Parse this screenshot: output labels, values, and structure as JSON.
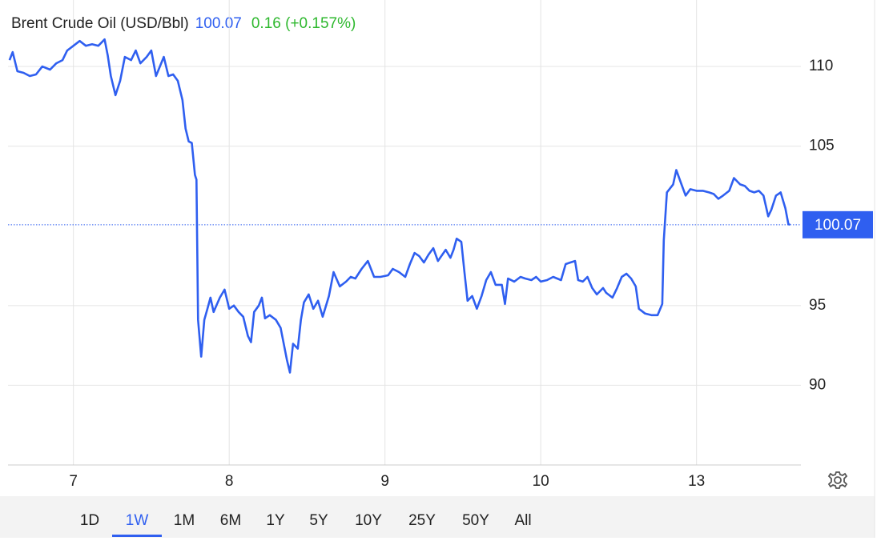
{
  "chart_data": {
    "type": "line",
    "title": "Brent Crude Oil (USD/Bbl)",
    "last_price": 100.07,
    "last_price_label": "100.07",
    "change": "0.16 (+0.157%)",
    "grid": true,
    "xlim": [
      -0.42,
      4.67
    ],
    "ylim": [
      85,
      114.17
    ],
    "xticks": [
      {
        "value": 0,
        "label": "7"
      },
      {
        "value": 1,
        "label": "8"
      },
      {
        "value": 2,
        "label": "9"
      },
      {
        "value": 3,
        "label": "10"
      },
      {
        "value": 4,
        "label": "13"
      }
    ],
    "yticks": [
      90,
      95,
      105,
      110
    ],
    "series": [
      {
        "name": "Brent Crude Oil",
        "color": "#2f5ff0",
        "x": [
          -0.41,
          -0.39,
          -0.36,
          -0.32,
          -0.28,
          -0.24,
          -0.2,
          -0.15,
          -0.11,
          -0.07,
          -0.04,
          0,
          0.04,
          0.08,
          0.12,
          0.16,
          0.2,
          0.22,
          0.24,
          0.27,
          0.3,
          0.33,
          0.37,
          0.4,
          0.43,
          0.47,
          0.5,
          0.53,
          0.58,
          0.61,
          0.64,
          0.67,
          0.7,
          0.72,
          0.74,
          0.76,
          0.78,
          0.79,
          0.8,
          0.82,
          0.84,
          0.86,
          0.88,
          0.9,
          0.94,
          0.97,
          1,
          1.03,
          1.06,
          1.09,
          1.12,
          1.14,
          1.16,
          1.19,
          1.21,
          1.23,
          1.26,
          1.3,
          1.33,
          1.35,
          1.37,
          1.39,
          1.41,
          1.44,
          1.46,
          1.48,
          1.51,
          1.54,
          1.57,
          1.6,
          1.64,
          1.67,
          1.71,
          1.75,
          1.78,
          1.81,
          1.85,
          1.89,
          1.93,
          1.97,
          2.02,
          2.05,
          2.09,
          2.13,
          2.16,
          2.19,
          2.22,
          2.25,
          2.28,
          2.31,
          2.34,
          2.39,
          2.42,
          2.44,
          2.46,
          2.49,
          2.51,
          2.53,
          2.56,
          2.59,
          2.62,
          2.65,
          2.68,
          2.71,
          2.75,
          2.77,
          2.79,
          2.83,
          2.87,
          2.9,
          2.94,
          2.97,
          3,
          3.04,
          3.08,
          3.13,
          3.16,
          3.19,
          3.22,
          3.24,
          3.27,
          3.3,
          3.33,
          3.36,
          3.4,
          3.42,
          3.46,
          3.49,
          3.52,
          3.55,
          3.58,
          3.61,
          3.63,
          3.67,
          3.71,
          3.75,
          3.78,
          3.79,
          3.81,
          3.85,
          3.87,
          3.9,
          3.93,
          3.96,
          4,
          4.04,
          4.08,
          4.11,
          4.14,
          4.17,
          4.21,
          4.24,
          4.28,
          4.31,
          4.34,
          4.37,
          4.4,
          4.43,
          4.46,
          4.48,
          4.51,
          4.54,
          4.57,
          4.59,
          4.6
        ],
        "values": [
          110.4,
          110.9,
          109.7,
          109.6,
          109.4,
          109.5,
          110.0,
          109.8,
          110.2,
          110.4,
          111.0,
          111.3,
          111.6,
          111.3,
          111.4,
          111.3,
          111.7,
          110.7,
          109.4,
          108.2,
          109.1,
          110.6,
          110.4,
          111.0,
          110.2,
          110.6,
          111.0,
          109.4,
          110.6,
          109.4,
          109.5,
          109.1,
          107.9,
          106.1,
          105.3,
          105.2,
          103.2,
          102.9,
          94.1,
          91.8,
          94.1,
          94.8,
          95.5,
          94.6,
          95.5,
          96.0,
          94.8,
          95.0,
          94.6,
          94.3,
          93.1,
          92.7,
          94.6,
          95.0,
          95.5,
          94.2,
          94.4,
          94.1,
          93.6,
          92.6,
          91.6,
          90.8,
          92.6,
          92.3,
          94.1,
          95.2,
          95.7,
          94.8,
          95.3,
          94.3,
          95.6,
          97.1,
          96.2,
          96.5,
          96.8,
          96.7,
          97.3,
          97.8,
          96.8,
          96.8,
          96.9,
          97.3,
          97.1,
          96.8,
          97.6,
          98.3,
          98.1,
          97.7,
          98.2,
          98.6,
          97.8,
          98.5,
          98.0,
          98.5,
          99.2,
          99.0,
          97.1,
          95.3,
          95.6,
          94.8,
          95.6,
          96.6,
          97.1,
          96.3,
          96.3,
          95.1,
          96.7,
          96.5,
          96.8,
          96.7,
          96.6,
          96.8,
          96.5,
          96.6,
          96.8,
          96.6,
          97.6,
          97.7,
          97.8,
          96.6,
          96.5,
          96.8,
          96.1,
          95.7,
          96.1,
          95.8,
          95.5,
          96.1,
          96.8,
          97.0,
          96.7,
          96.2,
          94.8,
          94.5,
          94.4,
          94.4,
          95.1,
          99.1,
          102.1,
          102.6,
          103.5,
          102.7,
          101.9,
          102.3,
          102.2,
          102.2,
          102.1,
          102.0,
          101.7,
          101.9,
          102.2,
          103.0,
          102.6,
          102.5,
          102.2,
          102.1,
          102.2,
          101.9,
          100.6,
          101.0,
          101.9,
          102.1,
          101.1,
          100.1,
          100.07
        ]
      }
    ],
    "ranges": [
      "1D",
      "1W",
      "1M",
      "6M",
      "1Y",
      "5Y",
      "10Y",
      "25Y",
      "50Y",
      "All"
    ],
    "selected_range": "1W"
  }
}
